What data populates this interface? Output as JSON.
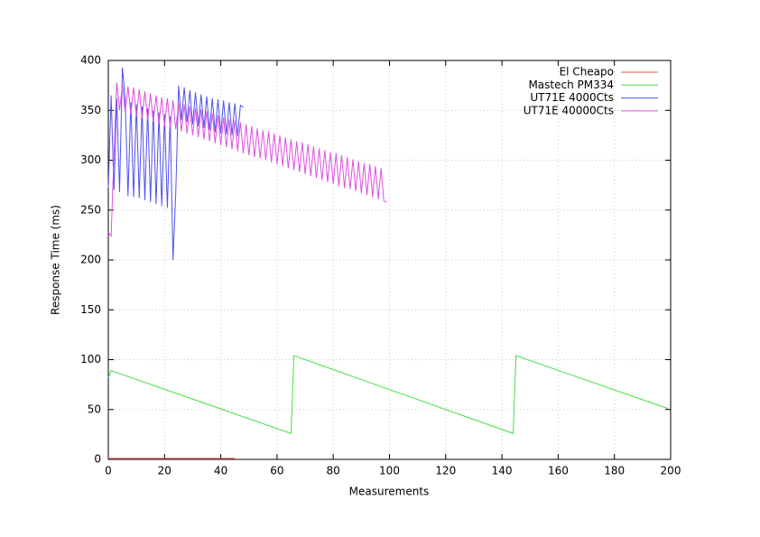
{
  "chart_data": {
    "type": "line",
    "xlabel": "Measurements",
    "ylabel": "Response Time (ms)",
    "xlim": [
      0,
      200
    ],
    "ylim": [
      0,
      400
    ],
    "xticks": [
      0,
      20,
      40,
      60,
      80,
      100,
      120,
      140,
      160,
      180,
      200
    ],
    "yticks": [
      0,
      50,
      100,
      150,
      200,
      250,
      300,
      350,
      400
    ],
    "grid": true,
    "legend": "upper right",
    "series": [
      {
        "name": "El Cheapo",
        "color": "#f05050",
        "x": [
          0,
          45
        ],
        "values": [
          1,
          1
        ]
      },
      {
        "name": "Mastech PM334",
        "color": "#40e040",
        "x": [
          0,
          1,
          65,
          66,
          144,
          145,
          199
        ],
        "values": [
          82,
          89,
          26,
          104,
          26,
          104,
          51
        ]
      },
      {
        "name": "UT71E 4000Cts",
        "color": "#5050f0",
        "x": [
          0,
          1,
          2,
          3,
          4,
          5,
          6,
          7,
          8,
          9,
          10,
          11,
          12,
          13,
          14,
          15,
          16,
          17,
          18,
          19,
          20,
          21,
          22,
          23,
          24,
          25,
          26,
          27,
          28,
          29,
          30,
          31,
          32,
          33,
          34,
          35,
          36,
          37,
          38,
          39,
          40,
          41,
          42,
          43,
          44,
          45,
          46,
          47,
          48
        ],
        "values": [
          272,
          365,
          270,
          362,
          268,
          393,
          360,
          264,
          358,
          263,
          356,
          262,
          354,
          260,
          352,
          258,
          350,
          256,
          348,
          254,
          346,
          252,
          344,
          200,
          268,
          375,
          340,
          373,
          338,
          370,
          336,
          368,
          334,
          366,
          332,
          364,
          330,
          362,
          328,
          361,
          327,
          360,
          326,
          358,
          325,
          357,
          324,
          355,
          353
        ]
      },
      {
        "name": "UT71E 40000Cts",
        "color": "#e050e0",
        "x": [
          0,
          1,
          2,
          3,
          4,
          5,
          6,
          7,
          8,
          9,
          10,
          11,
          12,
          13,
          14,
          15,
          16,
          17,
          18,
          19,
          20,
          21,
          22,
          23,
          24,
          25,
          26,
          27,
          28,
          29,
          30,
          31,
          32,
          33,
          34,
          35,
          36,
          37,
          38,
          39,
          40,
          41,
          42,
          43,
          44,
          45,
          46,
          47,
          48,
          49,
          50,
          51,
          52,
          53,
          54,
          55,
          56,
          57,
          58,
          59,
          60,
          61,
          62,
          63,
          64,
          65,
          66,
          67,
          68,
          69,
          70,
          71,
          72,
          73,
          74,
          75,
          76,
          77,
          78,
          79,
          80,
          81,
          82,
          83,
          84,
          85,
          86,
          87,
          88,
          89,
          90,
          91,
          92,
          93,
          94,
          95,
          96,
          97,
          98,
          99
        ],
        "values": [
          228,
          224,
          305,
          378,
          350,
          376,
          348,
          374,
          346,
          373,
          344,
          371,
          342,
          369,
          340,
          367,
          338,
          365,
          336,
          363,
          334,
          362,
          333,
          360,
          331,
          358,
          329,
          356,
          327,
          354,
          325,
          352,
          323,
          351,
          321,
          349,
          319,
          347,
          317,
          345,
          315,
          343,
          313,
          341,
          311,
          340,
          309,
          338,
          307,
          336,
          305,
          334,
          303,
          332,
          302,
          330,
          300,
          329,
          298,
          327,
          296,
          325,
          294,
          323,
          292,
          321,
          290,
          319,
          288,
          318,
          286,
          316,
          284,
          314,
          282,
          312,
          280,
          310,
          278,
          308,
          276,
          307,
          274,
          305,
          272,
          303,
          271,
          301,
          269,
          299,
          267,
          297,
          265,
          296,
          263,
          294,
          261,
          292,
          259,
          258
        ]
      }
    ]
  }
}
